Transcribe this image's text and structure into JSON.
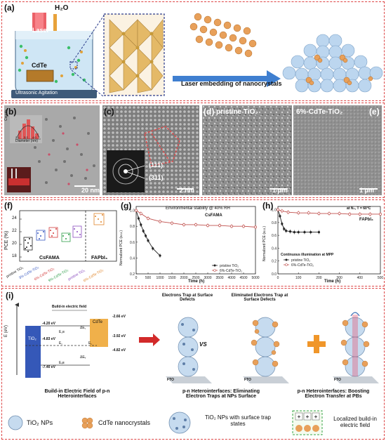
{
  "panel_a": {
    "label": "(a)",
    "h2o": "H₂O",
    "laser": "Laser",
    "target": "CdTe",
    "bath": "Ultrasonic Agitation",
    "arrow_caption": "Laser embedding of nanocrystals"
  },
  "panel_b": {
    "label": "(b)",
    "scale": "20 nm",
    "hist_ylabel": "Counts",
    "hist_xlabel": "Diameter (nm)",
    "hist_ticks": [
      "2.4",
      "3.2",
      "4.0"
    ]
  },
  "panel_c": {
    "label": "(c)",
    "scale": "2 nm",
    "ring1": "(111)",
    "ring2": "(311)"
  },
  "panel_d": {
    "label": "(d)",
    "title": "pristine TiO₂",
    "scale": "1 μm"
  },
  "panel_e": {
    "label": "(e)",
    "title": "6%-CdTe-TiO₂",
    "scale": "1 μm"
  },
  "panel_f": {
    "label": "(f)",
    "ylabel": "PCE (%)",
    "yticks": [
      "18",
      "20",
      "22",
      "24"
    ],
    "group1": "CsFAMA",
    "group2": "FAPbI₃",
    "xlabels": [
      "pristine TiO₂",
      "3%-CdTe-TiO₂",
      "6%-CdTe-TiO₂",
      "9%-CdTe-TiO₂",
      "pristine TiO₂",
      "6%-CdTe-TiO₂"
    ]
  },
  "panel_g": {
    "label": "(g)",
    "title": "Environmental stability @ 40% RH",
    "subtitle": "CsFAMA",
    "ylabel": "Normalized PCE (a.u.)",
    "xlabel": "Time (h)",
    "yticks": [
      "0.2",
      "0.4",
      "0.6",
      "0.8",
      "1.0"
    ],
    "xticks": [
      "0",
      "500",
      "1000",
      "1500",
      "2000",
      "2500",
      "3000",
      "3500",
      "4000",
      "4500",
      "5000"
    ],
    "legend": [
      "pristine TiO₂",
      "6%-CdTe-TiO₂"
    ]
  },
  "panel_h": {
    "label": "(h)",
    "cond": "at N₂, T = 60°C",
    "subtitle": "FAPbI₃",
    "ylabel": "Normalized PCE (a.u.)",
    "xlabel": "Time (h)",
    "yticks": [
      "0.0",
      "0.2",
      "0.4",
      "0.6",
      "0.8",
      "1.0"
    ],
    "xticks": [
      "0",
      "100",
      "200",
      "300",
      "400",
      "500"
    ],
    "legend_title": "Continuous illumination at MPP",
    "legend": [
      "pristine TiO₂",
      "6%-CdTe-TiO₂"
    ]
  },
  "panel_i": {
    "label": "(i)",
    "e_axis": "E (eV)",
    "field": "Build-in electric field",
    "tio2": "TiO₂",
    "cdte": "CdTe",
    "lv": [
      "-4.20 eV",
      "-4.83 eV",
      "-7.40 eV",
      "-2.66 eV",
      "-3.92 eV",
      "-4.82 eV"
    ],
    "sym": [
      "E꜀ʙ",
      "E꜀",
      "E꜀",
      "Eᵥʙ",
      "ΔE꜀",
      "ΔEᵥ"
    ],
    "vs": "VS",
    "top1": "Electrons Trap at Surface Defects",
    "top2": "Eliminated Electrons Trap at Surface Defects",
    "fto": "FTO",
    "cap1": "Build-in Electric Field of p-n Heterointerfaces",
    "cap2": "p-n Heterointerfaces: Eliminating Electron Traps at NPs Surface",
    "cap3": "p-n Heterointerfaces: Boosting Electron Transfer at PBs"
  },
  "legend": {
    "tio2": "TiO₂ NPs",
    "cdte": "CdTe nanocrystals",
    "trap": "TiO₂ NPs with surface trap states",
    "field": "Localized build-in electric field"
  },
  "chart_data": [
    {
      "type": "line",
      "title": "Environmental stability @ 40% RH",
      "xlabel": "Time (h)",
      "ylabel": "Normalized PCE (a.u.)",
      "xlim": [
        0,
        5000
      ],
      "ylim": [
        0.2,
        1.05
      ],
      "series": [
        {
          "name": "pristine TiO₂",
          "x": [
            0,
            100,
            200,
            300,
            400,
            500,
            700,
            1000
          ],
          "values": [
            1.0,
            0.9,
            0.82,
            0.74,
            0.68,
            0.62,
            0.52,
            0.43
          ]
        },
        {
          "name": "6%-CdTe-TiO₂",
          "x": [
            0,
            200,
            500,
            1000,
            1500,
            2000,
            2500,
            3000,
            3500,
            4000,
            4500,
            5000
          ],
          "values": [
            1.0,
            0.96,
            0.9,
            0.86,
            0.84,
            0.82,
            0.82,
            0.81,
            0.81,
            0.8,
            0.8,
            0.79
          ]
        }
      ]
    },
    {
      "type": "line",
      "title": "at N₂, T = 60°C",
      "xlabel": "Time (h)",
      "ylabel": "Normalized PCE (a.u.)",
      "xlim": [
        0,
        500
      ],
      "ylim": [
        0,
        1.05
      ],
      "series": [
        {
          "name": "pristine TiO₂",
          "x": [
            0,
            10,
            20,
            30,
            40,
            60,
            80,
            100,
            130,
            160,
            200
          ],
          "values": [
            1.0,
            0.9,
            0.78,
            0.7,
            0.67,
            0.66,
            0.65,
            0.65,
            0.65,
            0.65,
            0.65
          ]
        },
        {
          "name": "6%-CdTe-TiO₂",
          "x": [
            0,
            20,
            50,
            100,
            150,
            200,
            250,
            300,
            350,
            400,
            450,
            500
          ],
          "values": [
            1.0,
            0.98,
            0.96,
            0.95,
            0.95,
            0.94,
            0.94,
            0.94,
            0.93,
            0.93,
            0.93,
            0.93
          ]
        }
      ]
    }
  ]
}
